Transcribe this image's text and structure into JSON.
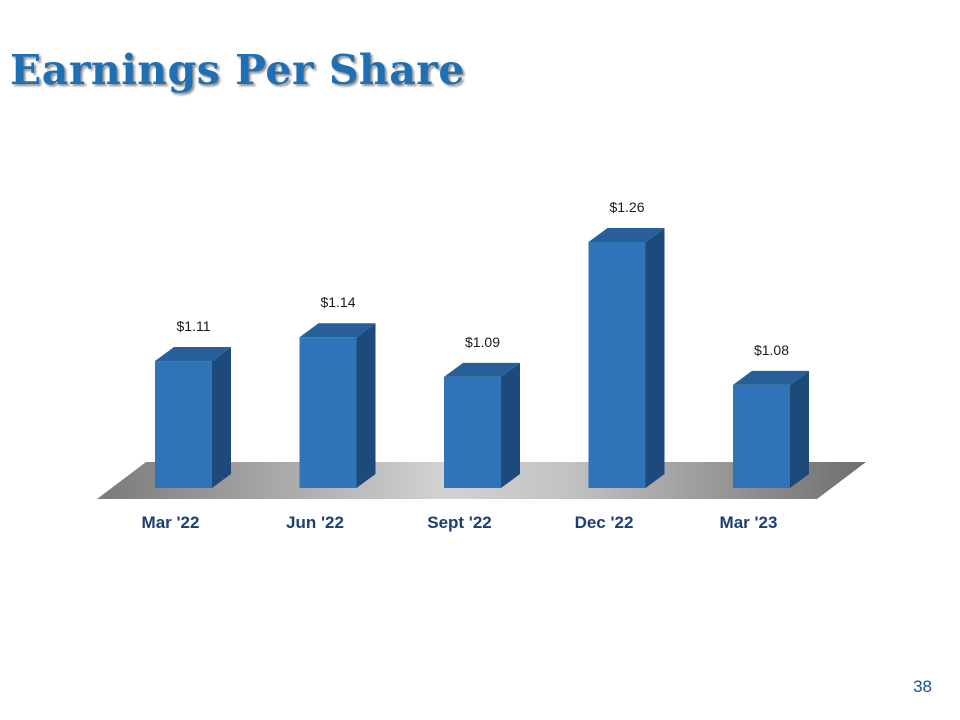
{
  "slide": {
    "title": "Earnings Per Share",
    "page_number": "38"
  },
  "colors": {
    "title": "#1f6fb5",
    "bar_front": "#2f74b9",
    "bar_side": "#1d4a7b",
    "bar_top": "#275f98",
    "floor": "#a8a8a8",
    "category_text": "#1c3f73"
  },
  "chart_data": {
    "type": "bar",
    "style": "3d-column",
    "title": "",
    "categories": [
      "Mar '22",
      "Jun '22",
      "Sept '22",
      "Dec '22",
      "Mar '23"
    ],
    "values": [
      1.11,
      1.14,
      1.09,
      1.26,
      1.08
    ],
    "data_labels": [
      "$1.11",
      "$1.14",
      "$1.09",
      "$1.26",
      "$1.08"
    ],
    "ylim": [
      0.95,
      1.3
    ],
    "grid": false,
    "legend": "none"
  }
}
